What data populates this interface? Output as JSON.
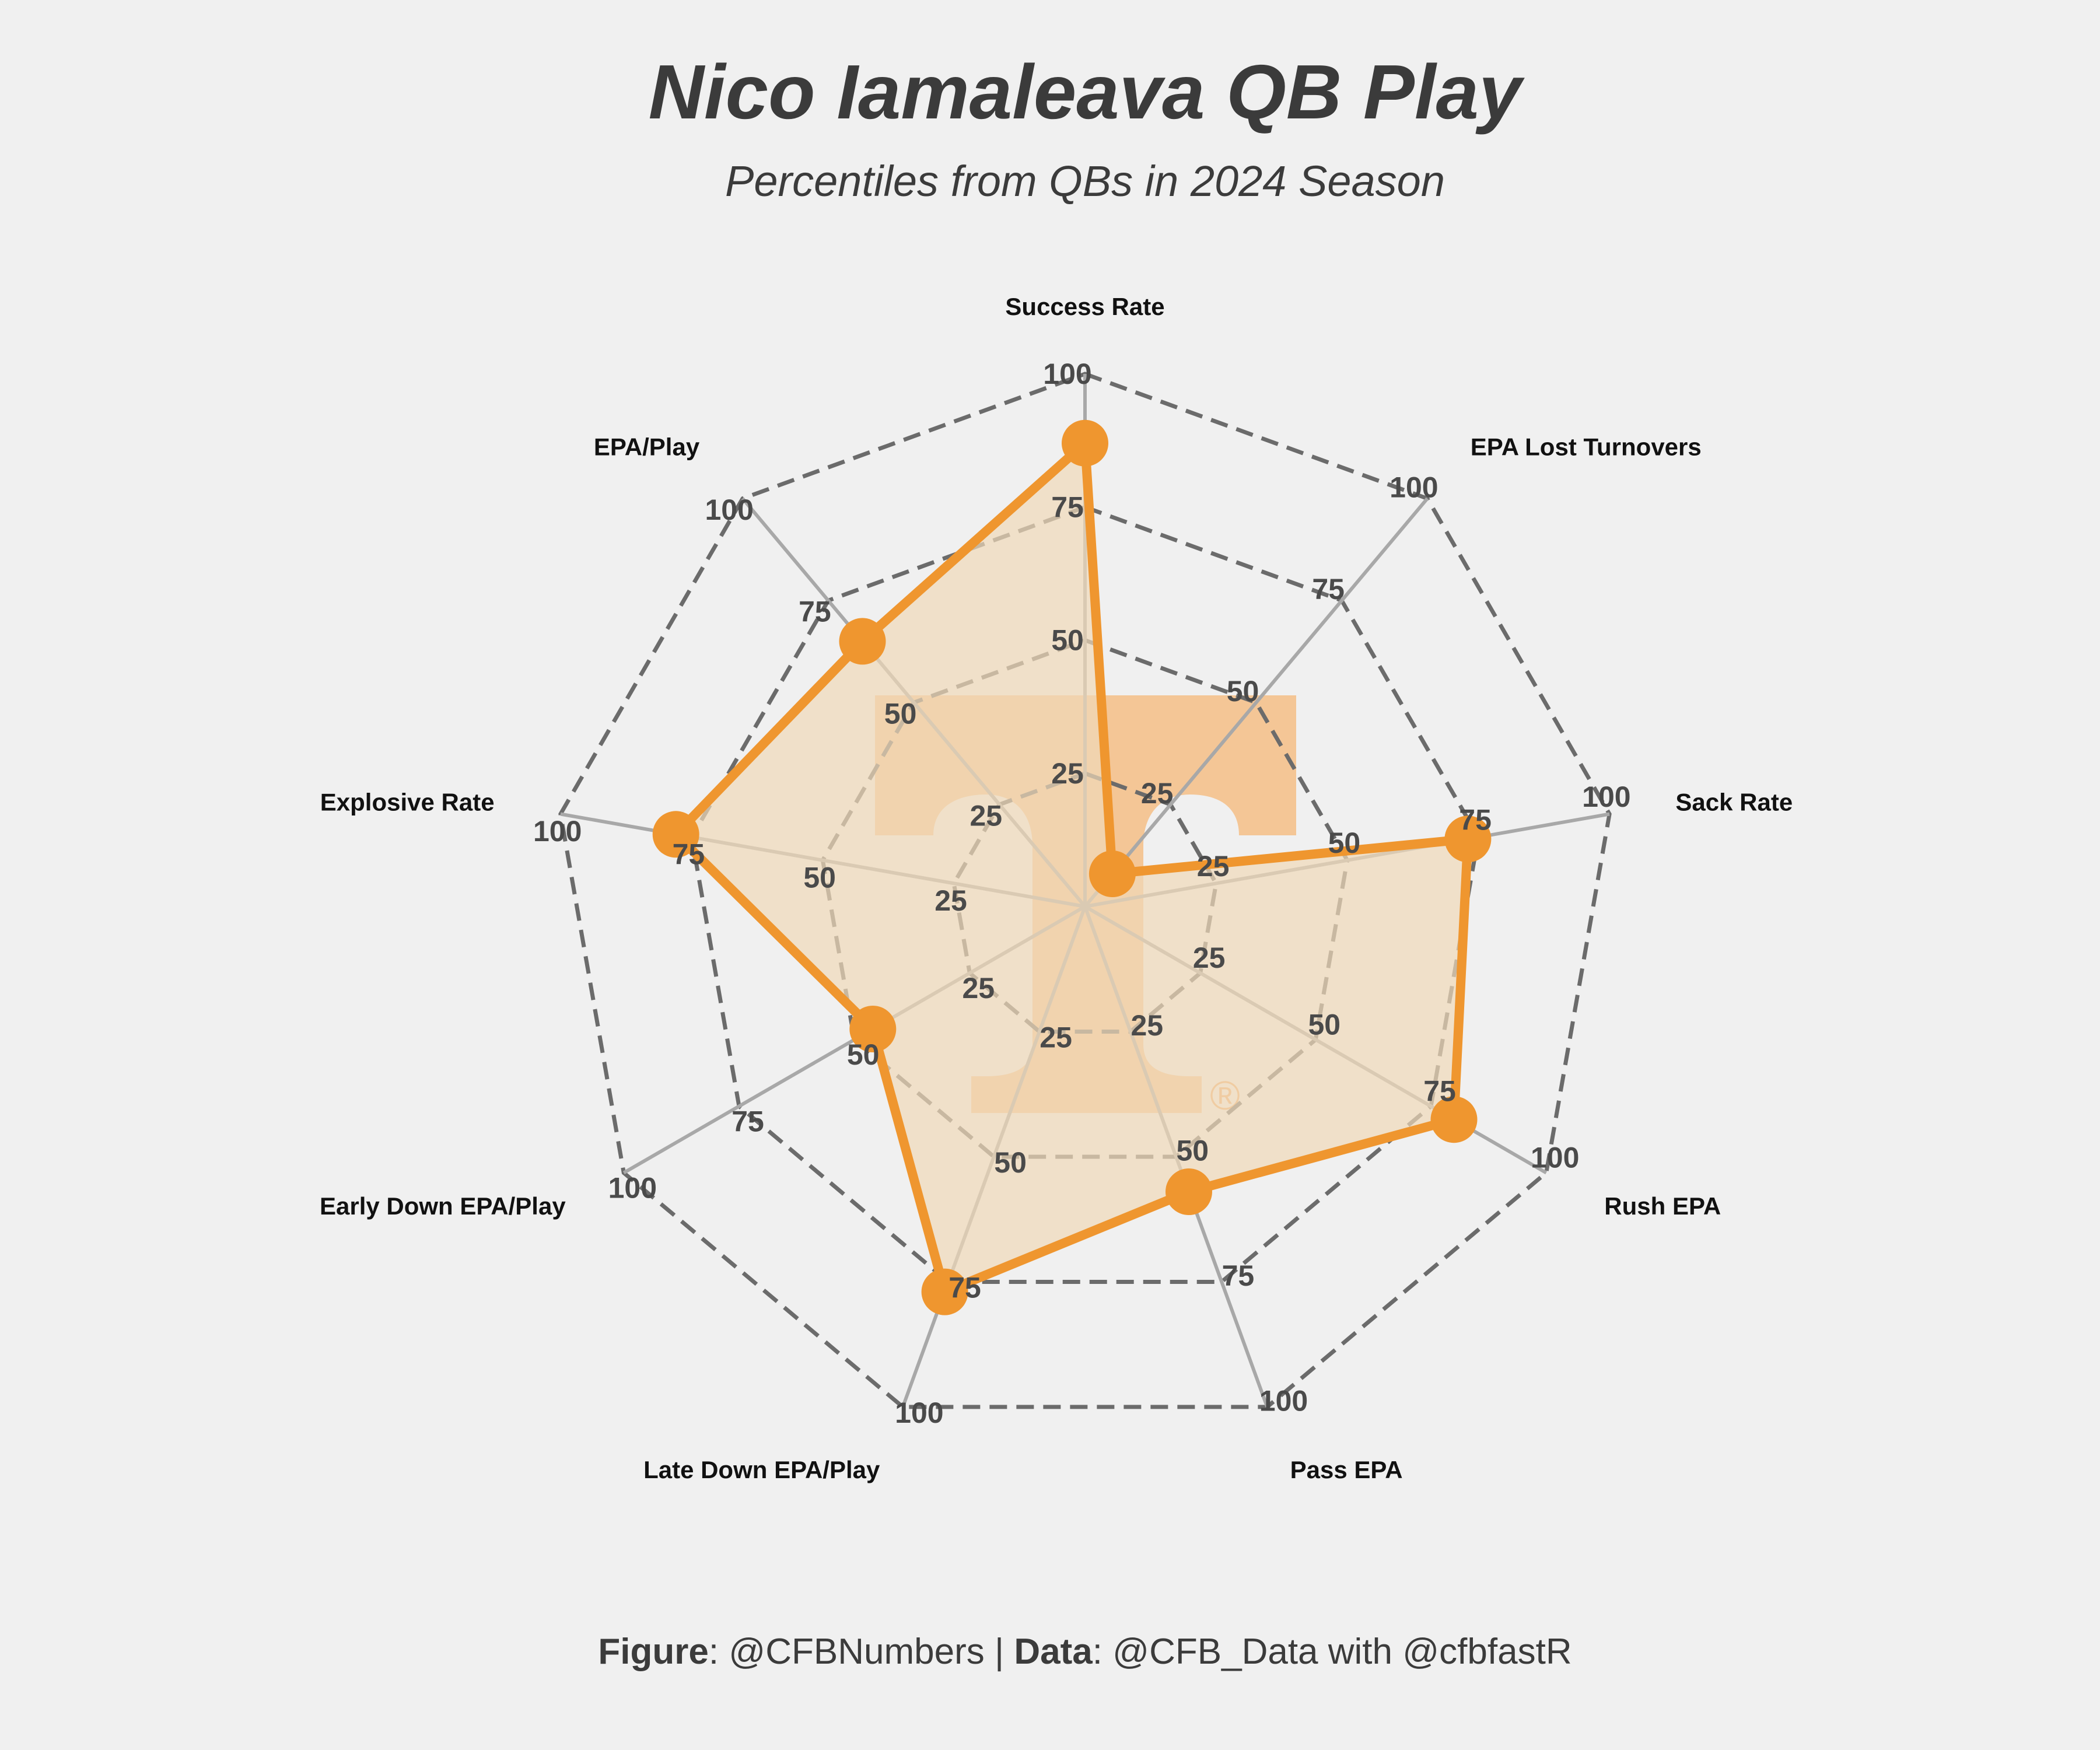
{
  "title": "Nico Iamaleava QB Play",
  "subtitle": "Percentiles from QBs in 2024 Season",
  "caption": {
    "figure_label": "Figure",
    "figure_value": ": @CFBNumbers | ",
    "data_label": "Data",
    "data_value": ": @CFB_Data with @cfbfastR"
  },
  "logo": {
    "name": "tennessee-power-t-logo",
    "mark": "®"
  },
  "colors": {
    "background": "#f0f0f0",
    "accent": "#ef962f",
    "fill": "#f0d9b8",
    "logo": "#f5bc80",
    "grid": "#6b6b6b",
    "spoke": "#a8a8a8"
  },
  "chart_data": {
    "type": "radar",
    "title": "Nico Iamaleava QB Play",
    "subtitle": "Percentiles from QBs in 2024 Season",
    "rlim": [
      0,
      100
    ],
    "rticks": [
      25,
      50,
      75,
      100
    ],
    "grid": true,
    "categories": [
      "Success Rate",
      "EPA Lost Turnovers",
      "Sack Rate",
      "Rush EPA",
      "Pass EPA",
      "Late Down EPA/Play",
      "Early Down EPA/Play",
      "Explosive Rate",
      "EPA/Play"
    ],
    "values": [
      87,
      8,
      73,
      80,
      57,
      77,
      46,
      78,
      65
    ]
  }
}
